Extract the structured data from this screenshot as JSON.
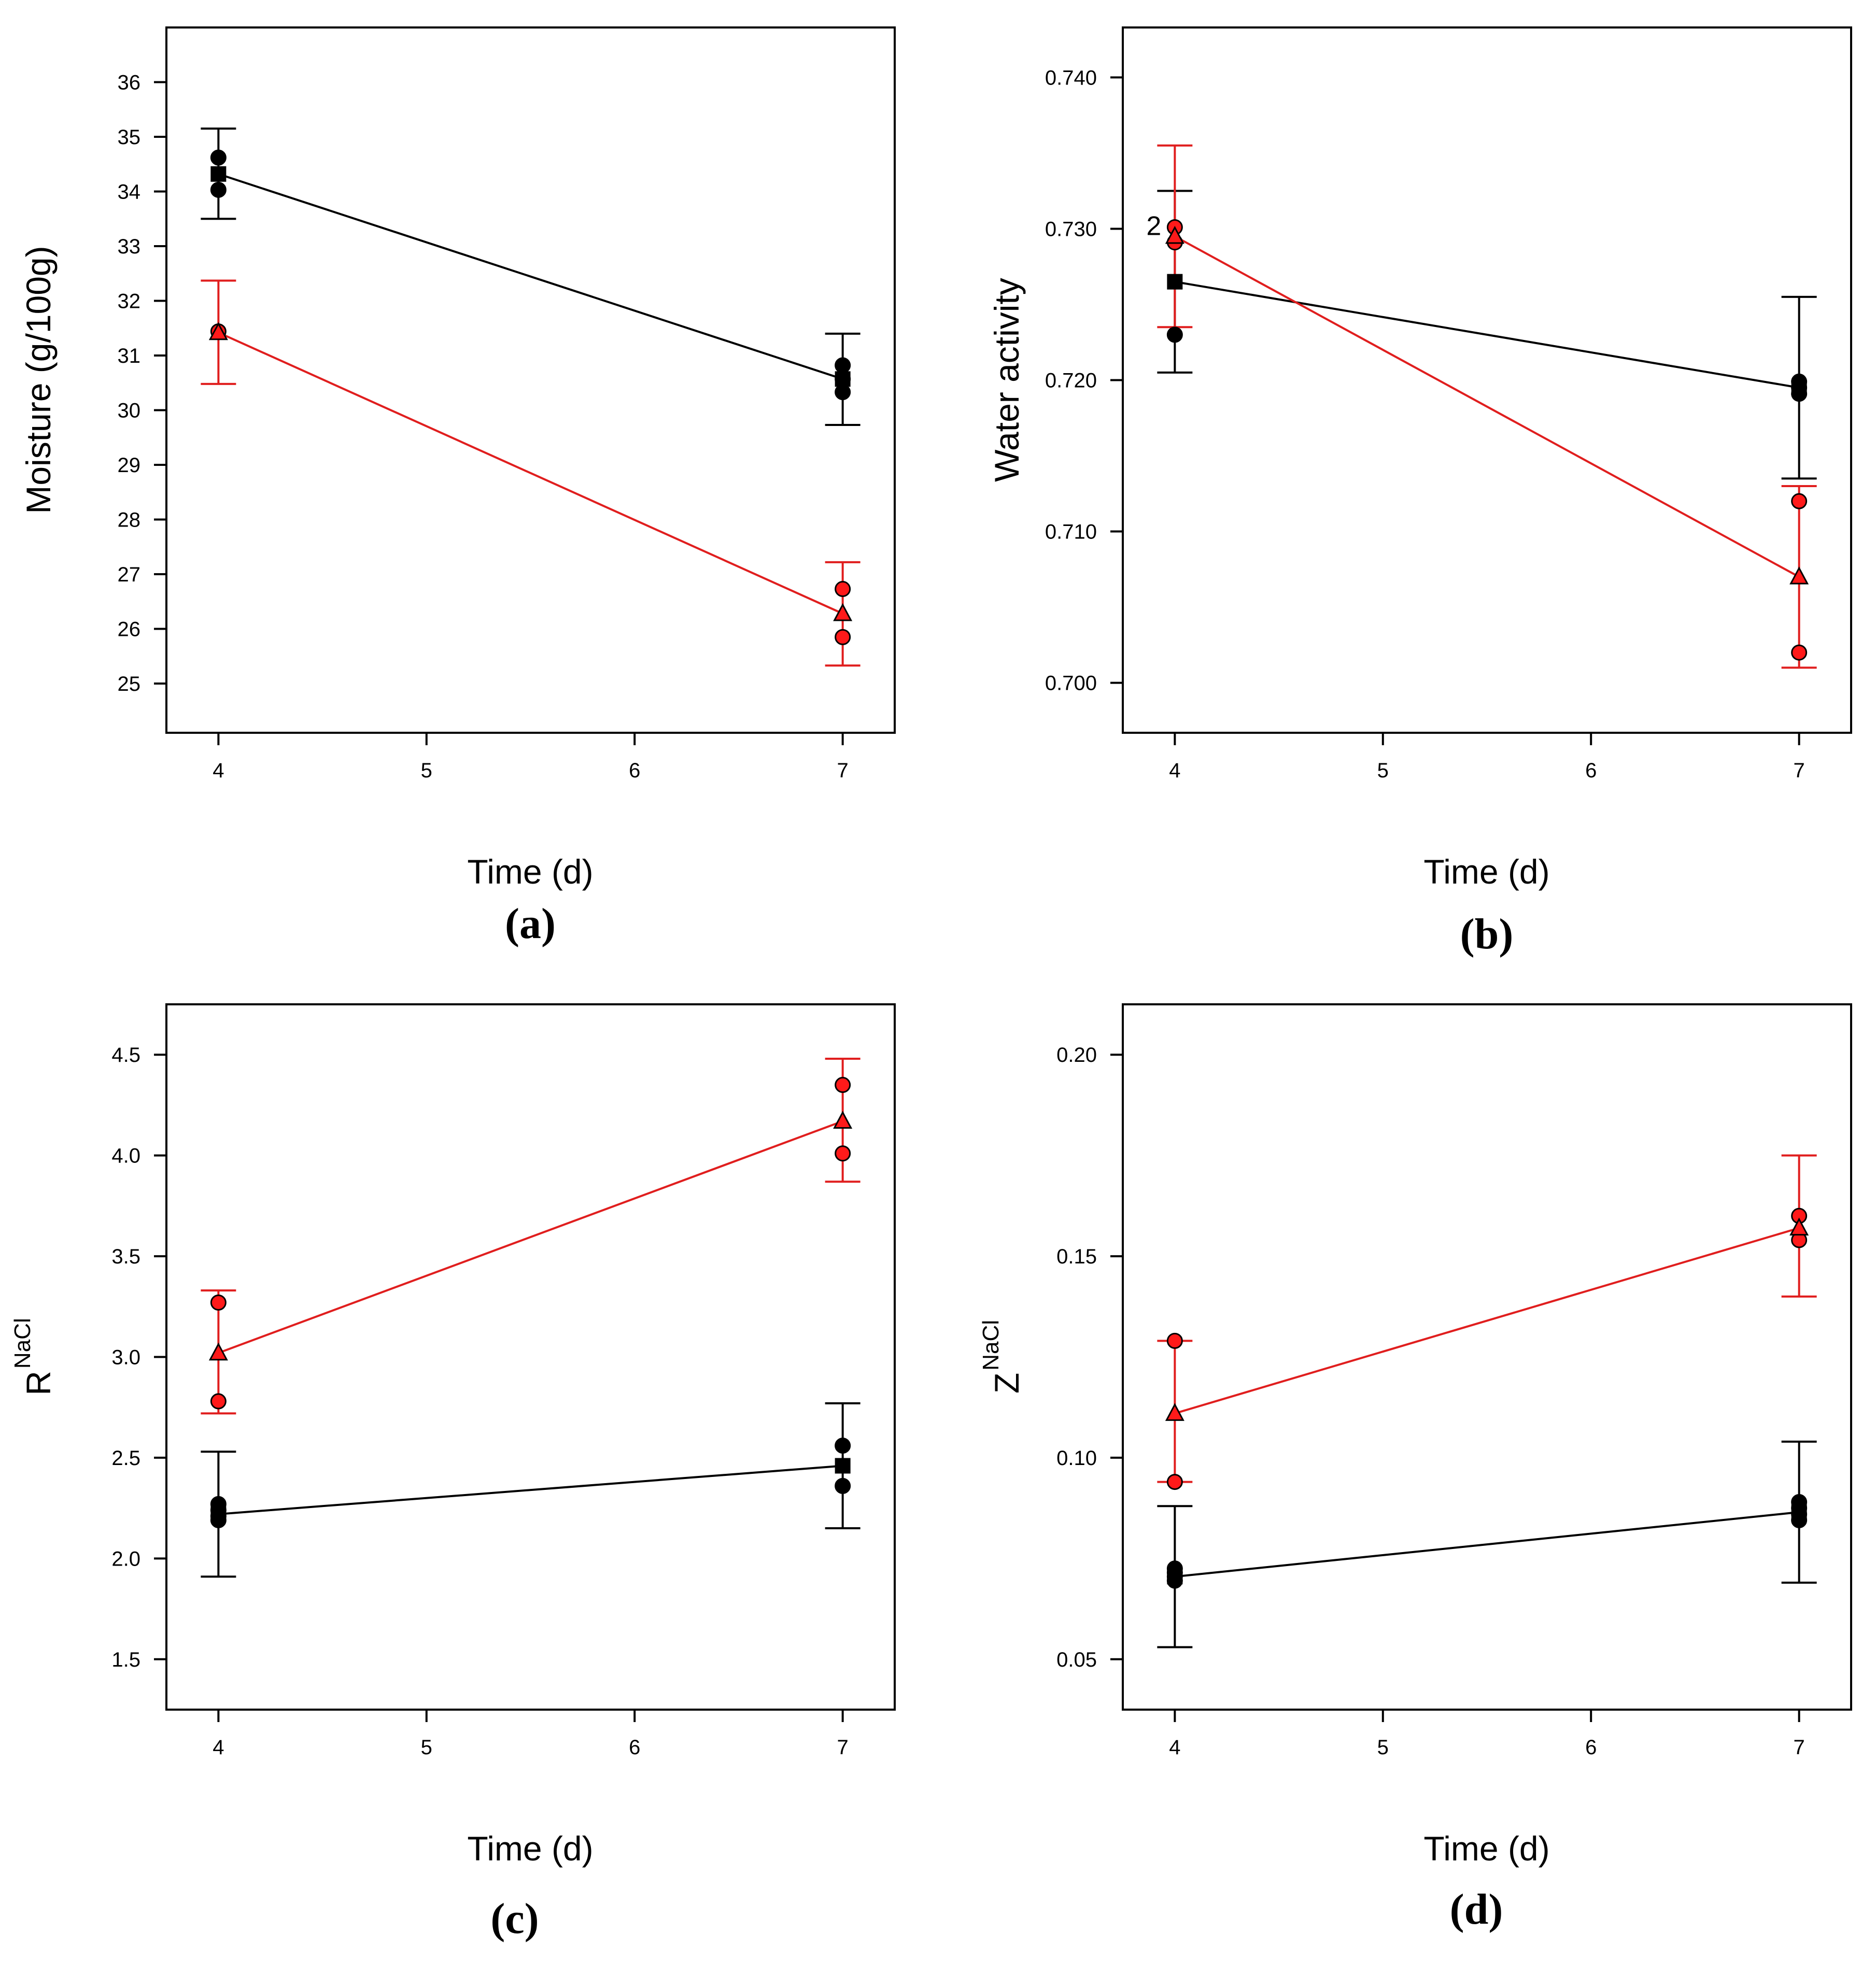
{
  "colors": {
    "series_1": "#000000",
    "series_2": "#e01e1e",
    "marker_fill_2": "#ff1a1a"
  },
  "chart_data": [
    {
      "type": "line",
      "panel_label": "(a)",
      "xlabel": "Time (d)",
      "ylabel": "Moisture (g/100g)",
      "ylabel_sup": "",
      "xlim": [
        3.75,
        7.25
      ],
      "ylim": [
        24.1,
        37.0
      ],
      "xticks": [
        4,
        5,
        6,
        7
      ],
      "yticks": [
        25,
        26,
        27,
        28,
        29,
        30,
        31,
        32,
        33,
        34,
        35,
        36
      ],
      "ytick_labels": [
        "25",
        "26",
        "27",
        "28",
        "29",
        "30",
        "31",
        "32",
        "33",
        "34",
        "35",
        "36"
      ],
      "series": [
        {
          "color": "#000000",
          "marker": "square",
          "x": [
            4,
            7
          ],
          "mean": [
            34.32,
            30.57
          ],
          "err_low": [
            33.5,
            29.73
          ],
          "err_high": [
            35.15,
            31.4
          ],
          "obs_x": [
            4,
            4,
            7,
            7,
            7
          ],
          "obs_y": [
            34.62,
            34.03,
            30.82,
            30.57,
            30.33
          ]
        },
        {
          "color": "#e01e1e",
          "marker": "triangle",
          "x": [
            4,
            7
          ],
          "mean": [
            31.42,
            26.28
          ],
          "err_low": [
            30.48,
            25.33
          ],
          "err_high": [
            32.37,
            27.22
          ],
          "obs_x": [
            4,
            7,
            7
          ],
          "obs_y": [
            31.44,
            26.73,
            25.85
          ]
        }
      ]
    },
    {
      "type": "line",
      "panel_label": "(b)",
      "xlabel": "Time (d)",
      "ylabel": "Water activity",
      "ylabel_sup": "",
      "xlim": [
        3.75,
        7.25
      ],
      "ylim": [
        0.6967,
        0.7433
      ],
      "xticks": [
        4,
        5,
        6,
        7
      ],
      "yticks": [
        0.7,
        0.71,
        0.72,
        0.73,
        0.74
      ],
      "ytick_labels": [
        "0.700",
        "0.710",
        "0.720",
        "0.730",
        "0.740"
      ],
      "annotation": {
        "text": "2",
        "x": 4,
        "y": 0.7302
      },
      "series": [
        {
          "color": "#000000",
          "marker": "square",
          "x": [
            4,
            7
          ],
          "mean": [
            0.7265,
            0.7195
          ],
          "err_low": [
            0.7205,
            0.7135
          ],
          "err_high": [
            0.7325,
            0.7255
          ],
          "obs_x": [
            4,
            7,
            7,
            7
          ],
          "obs_y": [
            0.723,
            0.7199,
            0.7195,
            0.7191
          ]
        },
        {
          "color": "#e01e1e",
          "marker": "triangle",
          "x": [
            4,
            7
          ],
          "mean": [
            0.7295,
            0.707
          ],
          "err_low": [
            0.7235,
            0.701
          ],
          "err_high": [
            0.7355,
            0.713
          ],
          "obs_x": [
            4,
            4,
            7,
            7
          ],
          "obs_y": [
            0.7301,
            0.7291,
            0.712,
            0.702
          ]
        }
      ]
    },
    {
      "type": "line",
      "panel_label": "(c)",
      "xlabel": "Time (d)",
      "ylabel": "R",
      "ylabel_sup": "NaCl",
      "xlim": [
        3.75,
        7.25
      ],
      "ylim": [
        1.25,
        4.75
      ],
      "xticks": [
        4,
        5,
        6,
        7
      ],
      "yticks": [
        1.5,
        2.0,
        2.5,
        3.0,
        3.5,
        4.0,
        4.5
      ],
      "ytick_labels": [
        "1.5",
        "2.0",
        "2.5",
        "3.0",
        "3.5",
        "4.0",
        "4.5"
      ],
      "series": [
        {
          "color": "#000000",
          "marker": "square",
          "x": [
            4,
            7
          ],
          "mean": [
            2.22,
            2.46
          ],
          "err_low": [
            1.91,
            2.15
          ],
          "err_high": [
            2.53,
            2.77
          ],
          "obs_x": [
            4,
            4,
            4,
            4,
            7,
            7
          ],
          "obs_y": [
            2.27,
            2.24,
            2.21,
            2.19,
            2.56,
            2.36
          ]
        },
        {
          "color": "#e01e1e",
          "marker": "triangle",
          "x": [
            4,
            7
          ],
          "mean": [
            3.02,
            4.17
          ],
          "err_low": [
            2.72,
            3.87
          ],
          "err_high": [
            3.33,
            4.48
          ],
          "obs_x": [
            4,
            4,
            7,
            7
          ],
          "obs_y": [
            3.27,
            2.78,
            4.35,
            4.01
          ]
        }
      ]
    },
    {
      "type": "line",
      "panel_label": "(d)",
      "xlabel": "Time (d)",
      "ylabel": "Z",
      "ylabel_sup": "NaCl",
      "xlim": [
        3.75,
        7.25
      ],
      "ylim": [
        0.0375,
        0.2125
      ],
      "xticks": [
        4,
        5,
        6,
        7
      ],
      "yticks": [
        0.05,
        0.1,
        0.15,
        0.2
      ],
      "ytick_labels": [
        "0.05",
        "0.10",
        "0.15",
        "0.20"
      ],
      "series": [
        {
          "color": "#000000",
          "marker": "square",
          "x": [
            4,
            7
          ],
          "mean": [
            0.0705,
            0.0865
          ],
          "err_low": [
            0.053,
            0.069
          ],
          "err_high": [
            0.088,
            0.104
          ],
          "obs_x": [
            4,
            4,
            4,
            4,
            7,
            7,
            7,
            7
          ],
          "obs_y": [
            0.0725,
            0.0715,
            0.0705,
            0.0695,
            0.089,
            0.0875,
            0.086,
            0.0845
          ]
        },
        {
          "color": "#e01e1e",
          "marker": "triangle",
          "x": [
            4,
            7
          ],
          "mean": [
            0.111,
            0.157
          ],
          "err_low": [
            0.094,
            0.14
          ],
          "err_high": [
            0.129,
            0.175
          ],
          "obs_x": [
            4,
            4,
            7,
            7
          ],
          "obs_y": [
            0.129,
            0.094,
            0.16,
            0.154
          ]
        }
      ]
    }
  ]
}
